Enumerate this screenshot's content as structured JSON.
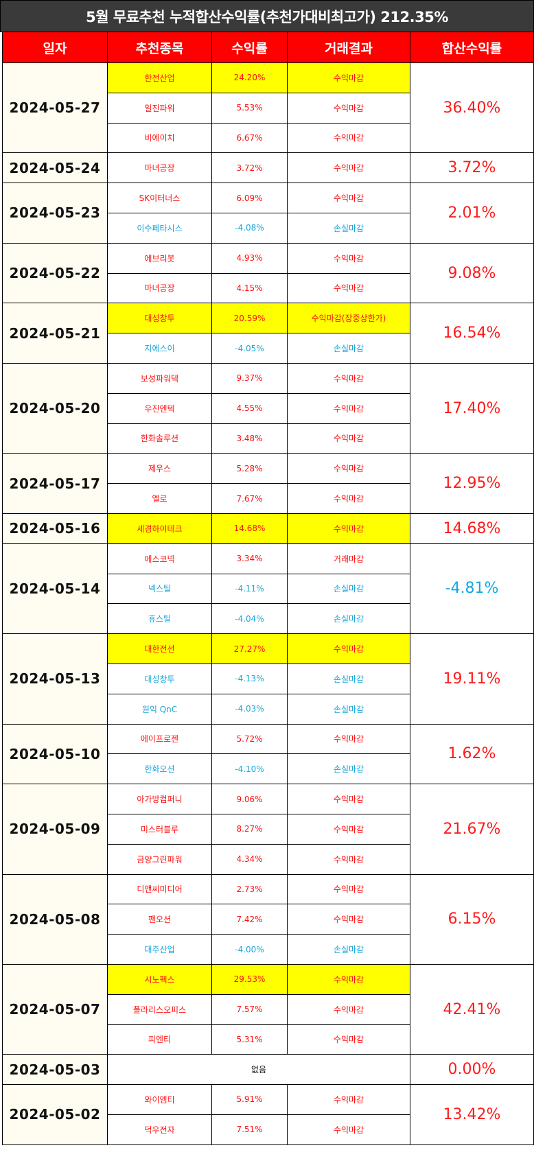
{
  "title": "5월 무료추천 누적합산수익률(추천가대비최고가) 212.35%",
  "headers": [
    "일자",
    "추천종목",
    "수익률",
    "거래결과",
    "합산수익률"
  ],
  "groups": [
    {
      "date": "2024-05-27",
      "total": "36.40%",
      "rows": [
        {
          "stock": "한전산업",
          "rate": "24.20%",
          "result": "수익마감",
          "type": "pos",
          "highlight": true
        },
        {
          "stock": "일진파워",
          "rate": "5.53%",
          "result": "수익마감",
          "type": "pos",
          "highlight": false
        },
        {
          "stock": "비에이치",
          "rate": "6.67%",
          "result": "수익마감",
          "type": "pos",
          "highlight": false
        }
      ]
    },
    {
      "date": "2024-05-24",
      "total": "3.72%",
      "rows": [
        {
          "stock": "마녀공장",
          "rate": "3.72%",
          "result": "수익마감",
          "type": "pos",
          "highlight": false
        }
      ]
    },
    {
      "date": "2024-05-23",
      "total": "2.01%",
      "rows": [
        {
          "stock": "SK이터너스",
          "rate": "6.09%",
          "result": "수익마감",
          "type": "pos",
          "highlight": false
        },
        {
          "stock": "이수페타시스",
          "rate": "-4.08%",
          "result": "손실마감",
          "type": "neg",
          "highlight": false
        }
      ]
    },
    {
      "date": "2024-05-22",
      "total": "9.08%",
      "rows": [
        {
          "stock": "에브리봇",
          "rate": "4.93%",
          "result": "수익마감",
          "type": "pos",
          "highlight": false
        },
        {
          "stock": "마녀공장",
          "rate": "4.15%",
          "result": "수익마감",
          "type": "pos",
          "highlight": false
        }
      ]
    },
    {
      "date": "2024-05-21",
      "total": "16.54%",
      "rows": [
        {
          "stock": "대성창투",
          "rate": "20.59%",
          "result": "수익마감(장중상한가)",
          "type": "pos",
          "highlight": true
        },
        {
          "stock": "지에스이",
          "rate": "-4.05%",
          "result": "손실마감",
          "type": "neg",
          "highlight": false
        }
      ]
    },
    {
      "date": "2024-05-20",
      "total": "17.40%",
      "rows": [
        {
          "stock": "보성파워텍",
          "rate": "9.37%",
          "result": "수익마감",
          "type": "pos",
          "highlight": false
        },
        {
          "stock": "우진엔텍",
          "rate": "4.55%",
          "result": "수익마감",
          "type": "pos",
          "highlight": false
        },
        {
          "stock": "한화솔루션",
          "rate": "3.48%",
          "result": "수익마감",
          "type": "pos",
          "highlight": false
        }
      ]
    },
    {
      "date": "2024-05-17",
      "total": "12.95%",
      "rows": [
        {
          "stock": "제우스",
          "rate": "5.28%",
          "result": "수익마감",
          "type": "pos",
          "highlight": false
        },
        {
          "stock": "엘로",
          "rate": "7.67%",
          "result": "수익마감",
          "type": "pos",
          "highlight": false
        }
      ]
    },
    {
      "date": "2024-05-16",
      "total": "14.68%",
      "rows": [
        {
          "stock": "세경하이테크",
          "rate": "14.68%",
          "result": "수익마감",
          "type": "pos",
          "highlight": true
        }
      ]
    },
    {
      "date": "2024-05-14",
      "total": "-4.81%",
      "totalNeg": true,
      "rows": [
        {
          "stock": "에스코넥",
          "rate": "3.34%",
          "result": "거래마감",
          "type": "pos",
          "highlight": false
        },
        {
          "stock": "넥스틸",
          "rate": "-4.11%",
          "result": "손실마감",
          "type": "neg",
          "highlight": false
        },
        {
          "stock": "휴스틸",
          "rate": "-4.04%",
          "result": "손실마감",
          "type": "neg",
          "highlight": false
        }
      ]
    },
    {
      "date": "2024-05-13",
      "total": "19.11%",
      "rows": [
        {
          "stock": "대한전선",
          "rate": "27.27%",
          "result": "수익마감",
          "type": "pos",
          "highlight": true
        },
        {
          "stock": "대성창투",
          "rate": "-4.13%",
          "result": "손실마감",
          "type": "neg",
          "highlight": false
        },
        {
          "stock": "원익 QnC",
          "rate": "-4.03%",
          "result": "손실마감",
          "type": "neg",
          "highlight": false
        }
      ]
    },
    {
      "date": "2024-05-10",
      "total": "1.62%",
      "rows": [
        {
          "stock": "에이프로젠",
          "rate": "5.72%",
          "result": "수익마감",
          "type": "pos",
          "highlight": false
        },
        {
          "stock": "한화오션",
          "rate": "-4.10%",
          "result": "손실마감",
          "type": "neg",
          "highlight": false
        }
      ]
    },
    {
      "date": "2024-05-09",
      "total": "21.67%",
      "rows": [
        {
          "stock": "아가방컴퍼니",
          "rate": "9.06%",
          "result": "수익마감",
          "type": "pos",
          "highlight": false
        },
        {
          "stock": "미스터블루",
          "rate": "8.27%",
          "result": "수익마감",
          "type": "pos",
          "highlight": false
        },
        {
          "stock": "금양그린파워",
          "rate": "4.34%",
          "result": "수익마감",
          "type": "pos",
          "highlight": false
        }
      ]
    },
    {
      "date": "2024-05-08",
      "total": "6.15%",
      "rows": [
        {
          "stock": "디앤씨미디어",
          "rate": "2.73%",
          "result": "수익마감",
          "type": "pos",
          "highlight": false
        },
        {
          "stock": "팬오션",
          "rate": "7.42%",
          "result": "수익마감",
          "type": "pos",
          "highlight": false
        },
        {
          "stock": "대주산업",
          "rate": "-4.00%",
          "result": "손실마감",
          "type": "neg",
          "highlight": false
        }
      ]
    },
    {
      "date": "2024-05-07",
      "total": "42.41%",
      "rows": [
        {
          "stock": "시노펙스",
          "rate": "29.53%",
          "result": "수익마감",
          "type": "pos",
          "highlight": true
        },
        {
          "stock": "폴라리스오피스",
          "rate": "7.57%",
          "result": "수익마감",
          "type": "pos",
          "highlight": false
        },
        {
          "stock": "피엔티",
          "rate": "5.31%",
          "result": "수익마감",
          "type": "pos",
          "highlight": false
        }
      ]
    },
    {
      "date": "2024-05-03",
      "total": "0.00%",
      "none": "없음",
      "rows": []
    },
    {
      "date": "2024-05-02",
      "total": "13.42%",
      "rows": [
        {
          "stock": "와이엠티",
          "rate": "5.91%",
          "result": "수익마감",
          "type": "pos",
          "highlight": false
        },
        {
          "stock": "덕우전자",
          "rate": "7.51%",
          "result": "수익마감",
          "type": "pos",
          "highlight": false
        }
      ]
    }
  ]
}
